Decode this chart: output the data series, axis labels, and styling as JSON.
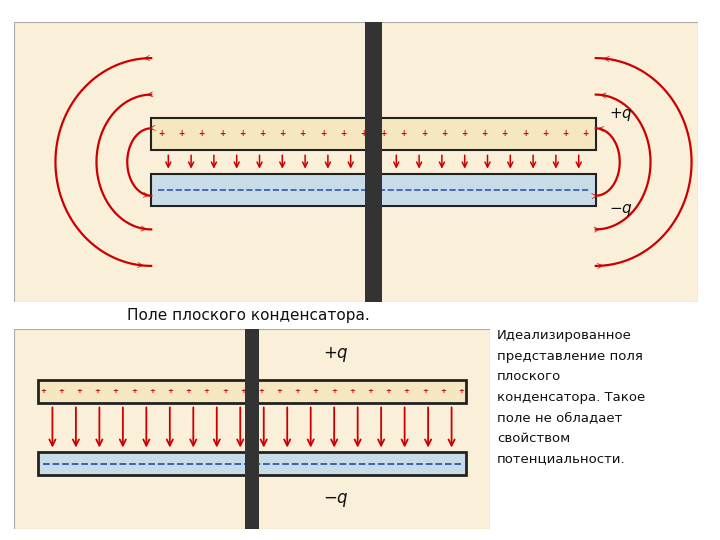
{
  "bg_color": "#faefd8",
  "plate_top_color": "#f5e8c0",
  "plate_bot_color": "#c8dce8",
  "plate_border": "#222222",
  "arrow_color": "#cc0000",
  "plus_color": "#cc0000",
  "dash_color": "#3355aa",
  "axis_color": "#333333",
  "text_color": "#111111",
  "title1": "Поле плоского конденсатора.",
  "text2": "Идеализированное\nпредставление поля\nплоского\nконденсатора. Такое\nполе не обладает\nсвойством\nпотенциальности."
}
